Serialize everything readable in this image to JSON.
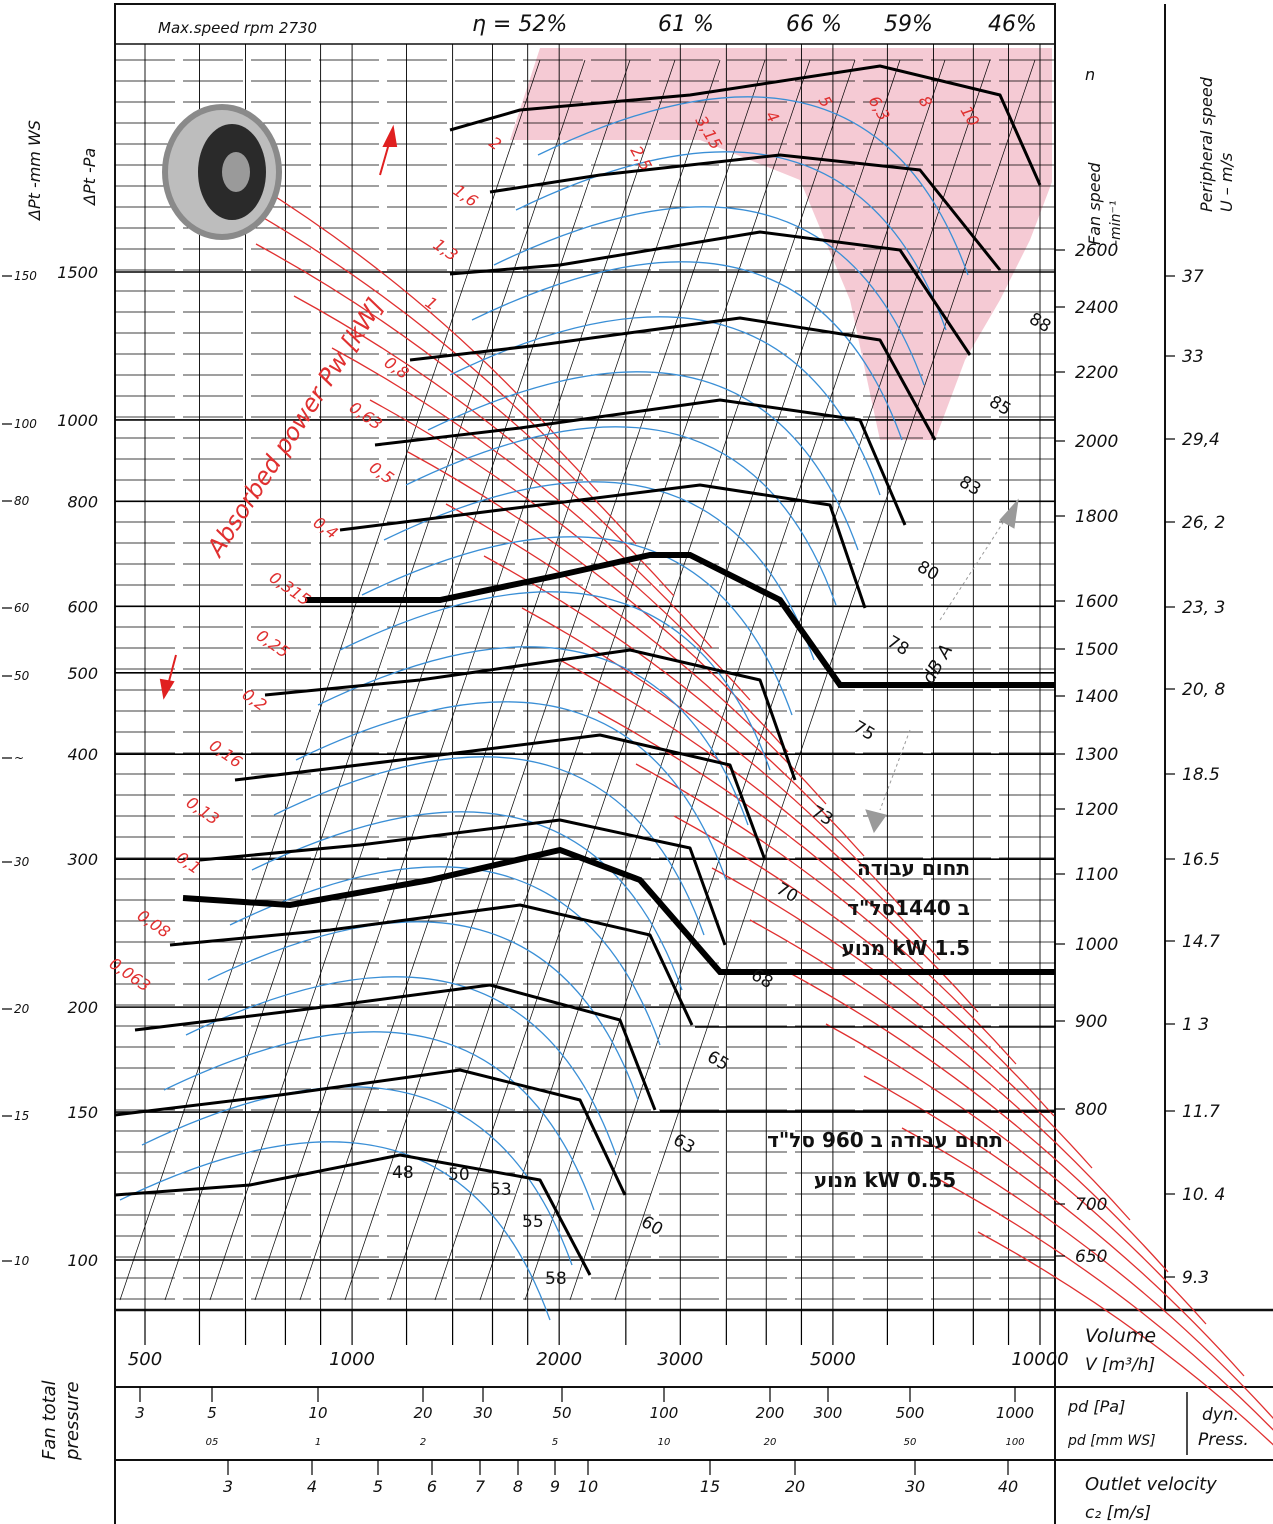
{
  "chart_data": {
    "type": "line",
    "header": {
      "max_speed": "Max.speed  rpm  2730",
      "eta_labels": [
        "η = 52%",
        "61 %",
        "66 %",
        "59%",
        "46%"
      ]
    },
    "axes": {
      "left_outer_title": "ΔPt -mm WS",
      "left_inner_title": "ΔPt  -Pa",
      "pa_ticks": [
        "1500",
        "1000",
        "800",
        "600",
        "500",
        "400",
        "300",
        "200",
        "150",
        "100"
      ],
      "mmws_ticks": [
        "150",
        "100",
        "80",
        "60",
        "50",
        "~",
        "30",
        "20",
        "15",
        "10"
      ],
      "speed_title": "Fan speed",
      "speed_unit": "-min⁻¹",
      "speed_n": "n",
      "speed_ticks": [
        "2600",
        "2400",
        "2200",
        "2000",
        "1800",
        "1600",
        "1500",
        "1400",
        "1300",
        "1200",
        "1100",
        "1000",
        "900",
        "800",
        "700",
        "650"
      ],
      "periph_title": "Peripheral speed",
      "periph_unit": "U – m/s",
      "periph_ticks": [
        "37",
        "33",
        "29,4",
        "26, 2",
        "23, 3",
        "20, 8",
        "18.5",
        "16.5",
        "14.7",
        "1 3",
        "11.7",
        "10. 4",
        "9.3"
      ],
      "volume_ticks": [
        "500",
        "1000",
        "2000",
        "3000",
        "5000",
        "10000"
      ],
      "volume_title": "Volume",
      "volume_unit": "V  [m³/h]",
      "pd_pa_ticks": [
        "3",
        "5",
        "10",
        "20",
        "30",
        "50",
        "100",
        "200",
        "300",
        "500",
        "1000"
      ],
      "pd_mm_ticks": [
        "05",
        "1",
        "2",
        "5",
        "10",
        "20",
        "50",
        "100"
      ],
      "pd_pa_label": "pd  [Pa]",
      "pd_mm_label": "pd [mm WS]",
      "dyn_press": [
        "dyn.",
        "Press."
      ],
      "velocity_ticks": [
        "3",
        "4",
        "5",
        "6",
        "7",
        "8",
        "9",
        "10",
        "15",
        "20",
        "30",
        "40"
      ],
      "velocity_title": "Outlet velocity",
      "velocity_unit": "c₂  [m/s]",
      "fan_total_pressure": [
        "Fan total",
        "pressure"
      ]
    },
    "power_title": "Absorbed power Pw [kW]",
    "power_labels": [
      "2",
      "1,6",
      "1,3",
      "1",
      "0,8",
      "0,63",
      "0,5",
      "0,4",
      "0,315",
      "0,25",
      "0,2",
      "0,16",
      "0,13",
      "0,1",
      "0,08",
      "0,063"
    ],
    "power_labels_top": [
      "2,5",
      "3,15",
      "4",
      "5",
      "6,3",
      "8",
      "10"
    ],
    "dba_title": "dB A",
    "dba_labels": [
      "88",
      "85",
      "83",
      "80",
      "78",
      "75",
      "73",
      "70",
      "68",
      "65",
      "63",
      "60",
      "58",
      "55",
      "53",
      "50",
      "48"
    ],
    "annotations": {
      "range_1440": [
        "תחום עבודה",
        "ב 1440סל\"ד",
        "kW 1.5 מנוע"
      ],
      "range_960": [
        "תחום עבודה ב 960 סל\"ד",
        "kW 0.55 מנוע"
      ]
    }
  }
}
